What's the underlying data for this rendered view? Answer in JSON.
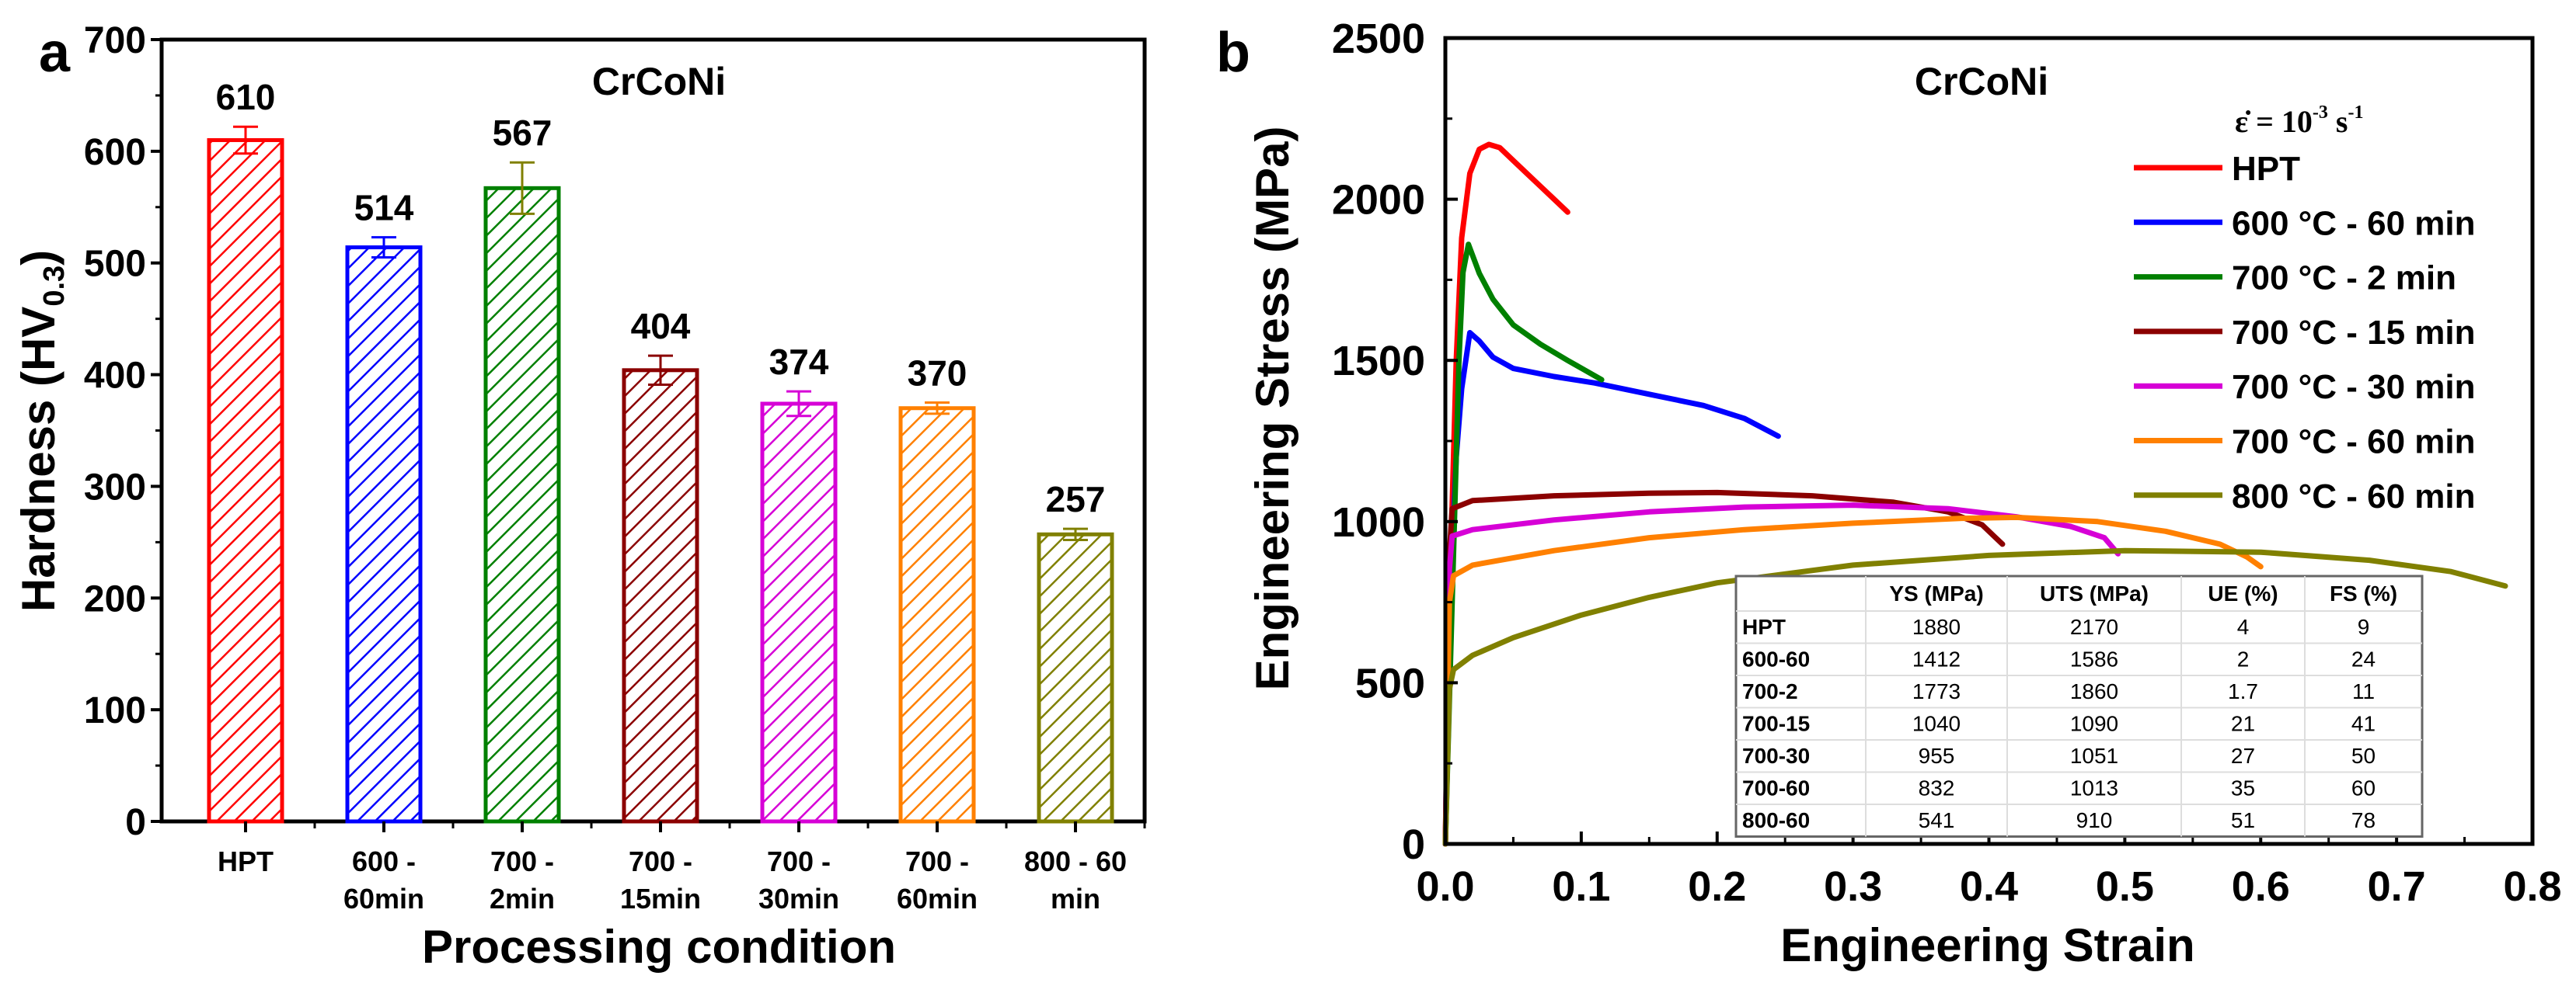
{
  "chart_data": [
    {
      "panel_label": "a",
      "type": "bar",
      "title": "CrCoNi",
      "xlabel": "Processing condition",
      "ylabel": {
        "main": "Hardness (HV",
        "sub": "0.3",
        "close": ")"
      },
      "ylim": [
        0,
        700
      ],
      "yticks": [
        "0",
        "100",
        "200",
        "300",
        "400",
        "500",
        "600",
        "700"
      ],
      "categories": [
        [
          "HPT"
        ],
        [
          "600 -",
          "60min"
        ],
        [
          "700 -",
          "2min"
        ],
        [
          "700 -",
          "15min"
        ],
        [
          "700 -",
          "30min"
        ],
        [
          "700 -",
          "60min"
        ],
        [
          "800 - 60",
          "min"
        ]
      ],
      "values": [
        610,
        514,
        567,
        404,
        374,
        370,
        257
      ],
      "value_labels": [
        "610",
        "514",
        "567",
        "404",
        "374",
        "370",
        "257"
      ],
      "errors": [
        12,
        9,
        23,
        13,
        11,
        5,
        5
      ],
      "colors": [
        "#ff0000",
        "#0000ff",
        "#008000",
        "#8b0000",
        "#d600d6",
        "#ff8000",
        "#808000"
      ],
      "error_colors": [
        "#ff0000",
        "#0000ff",
        "#808000",
        "#8b0000",
        "#d600d6",
        "#ff8000",
        "#808000"
      ],
      "pattern": "diagonal hatch"
    },
    {
      "panel_label": "b",
      "type": "line",
      "title": "CrCoNi",
      "xlabel": "Engineering Strain",
      "ylabel": "Engineering Stress (MPa)",
      "xlim": [
        0,
        0.8
      ],
      "ylim": [
        0,
        2500
      ],
      "xticks": [
        "0.0",
        "0.1",
        "0.2",
        "0.3",
        "0.4",
        "0.5",
        "0.6",
        "0.7",
        "0.8"
      ],
      "yticks": [
        "0",
        "500",
        "1000",
        "1500",
        "2000",
        "2500"
      ],
      "legend_position": "top-right",
      "strain_rate": {
        "prefix": "ε̇ = 10",
        "exp1": "-3",
        "unit": " s",
        "exp2": "-1"
      },
      "series": [
        {
          "name": "HPT",
          "color": "#ff0000",
          "points": [
            [
              0,
              0
            ],
            [
              0.004,
              900
            ],
            [
              0.008,
              1500
            ],
            [
              0.012,
              1880
            ],
            [
              0.018,
              2080
            ],
            [
              0.025,
              2155
            ],
            [
              0.032,
              2170
            ],
            [
              0.04,
              2160
            ],
            [
              0.05,
              2120
            ],
            [
              0.06,
              2080
            ],
            [
              0.07,
              2040
            ],
            [
              0.08,
              2000
            ],
            [
              0.09,
              1960
            ]
          ]
        },
        {
          "name": "600 °C - 60 min",
          "color": "#0000ff",
          "points": [
            [
              0,
              0
            ],
            [
              0.004,
              800
            ],
            [
              0.008,
              1200
            ],
            [
              0.012,
              1412
            ],
            [
              0.018,
              1586
            ],
            [
              0.025,
              1560
            ],
            [
              0.035,
              1510
            ],
            [
              0.05,
              1475
            ],
            [
              0.08,
              1450
            ],
            [
              0.11,
              1430
            ],
            [
              0.15,
              1395
            ],
            [
              0.19,
              1360
            ],
            [
              0.22,
              1320
            ],
            [
              0.245,
              1265
            ]
          ]
        },
        {
          "name": "700 °C - 2 min",
          "color": "#008000",
          "points": [
            [
              0,
              0
            ],
            [
              0.006,
              900
            ],
            [
              0.01,
              1500
            ],
            [
              0.013,
              1773
            ],
            [
              0.017,
              1860
            ],
            [
              0.025,
              1770
            ],
            [
              0.035,
              1690
            ],
            [
              0.05,
              1610
            ],
            [
              0.07,
              1550
            ],
            [
              0.09,
              1500
            ],
            [
              0.115,
              1440
            ]
          ]
        },
        {
          "name": "700 °C - 15 min",
          "color": "#8b0000",
          "points": [
            [
              0,
              0
            ],
            [
              0.003,
              900
            ],
            [
              0.005,
              1040
            ],
            [
              0.02,
              1065
            ],
            [
              0.08,
              1080
            ],
            [
              0.15,
              1088
            ],
            [
              0.2,
              1090
            ],
            [
              0.27,
              1080
            ],
            [
              0.33,
              1060
            ],
            [
              0.37,
              1030
            ],
            [
              0.395,
              990
            ],
            [
              0.405,
              950
            ],
            [
              0.41,
              930
            ]
          ]
        },
        {
          "name": "700 °C - 30 min",
          "color": "#d600d6",
          "points": [
            [
              0,
              0
            ],
            [
              0.003,
              850
            ],
            [
              0.005,
              955
            ],
            [
              0.02,
              975
            ],
            [
              0.08,
              1005
            ],
            [
              0.15,
              1030
            ],
            [
              0.22,
              1045
            ],
            [
              0.3,
              1051
            ],
            [
              0.37,
              1040
            ],
            [
              0.42,
              1015
            ],
            [
              0.46,
              985
            ],
            [
              0.485,
              950
            ],
            [
              0.495,
              900
            ]
          ]
        },
        {
          "name": "700 °C - 60 min",
          "color": "#ff8000",
          "points": [
            [
              0,
              0
            ],
            [
              0.003,
              750
            ],
            [
              0.006,
              832
            ],
            [
              0.02,
              865
            ],
            [
              0.08,
              910
            ],
            [
              0.15,
              950
            ],
            [
              0.22,
              975
            ],
            [
              0.3,
              995
            ],
            [
              0.38,
              1010
            ],
            [
              0.42,
              1013
            ],
            [
              0.48,
              1000
            ],
            [
              0.53,
              970
            ],
            [
              0.57,
              930
            ],
            [
              0.59,
              890
            ],
            [
              0.6,
              860
            ]
          ]
        },
        {
          "name": "800 °C - 60 min",
          "color": "#808000",
          "points": [
            [
              0,
              0
            ],
            [
              0.003,
              480
            ],
            [
              0.006,
              541
            ],
            [
              0.02,
              585
            ],
            [
              0.05,
              640
            ],
            [
              0.1,
              710
            ],
            [
              0.15,
              765
            ],
            [
              0.2,
              810
            ],
            [
              0.3,
              865
            ],
            [
              0.4,
              895
            ],
            [
              0.5,
              910
            ],
            [
              0.6,
              905
            ],
            [
              0.68,
              880
            ],
            [
              0.74,
              845
            ],
            [
              0.78,
              800
            ]
          ]
        }
      ],
      "table": {
        "headers": [
          "",
          "YS (MPa)",
          "UTS (MPa)",
          "UE (%)",
          "FS (%)"
        ],
        "rows": [
          [
            "HPT",
            "1880",
            "2170",
            "4",
            "9"
          ],
          [
            "600-60",
            "1412",
            "1586",
            "2",
            "24"
          ],
          [
            "700-2",
            "1773",
            "1860",
            "1.7",
            "11"
          ],
          [
            "700-15",
            "1040",
            "1090",
            "21",
            "41"
          ],
          [
            "700-30",
            "955",
            "1051",
            "27",
            "50"
          ],
          [
            "700-60",
            "832",
            "1013",
            "35",
            "60"
          ],
          [
            "800-60",
            "541",
            "910",
            "51",
            "78"
          ]
        ]
      }
    }
  ]
}
